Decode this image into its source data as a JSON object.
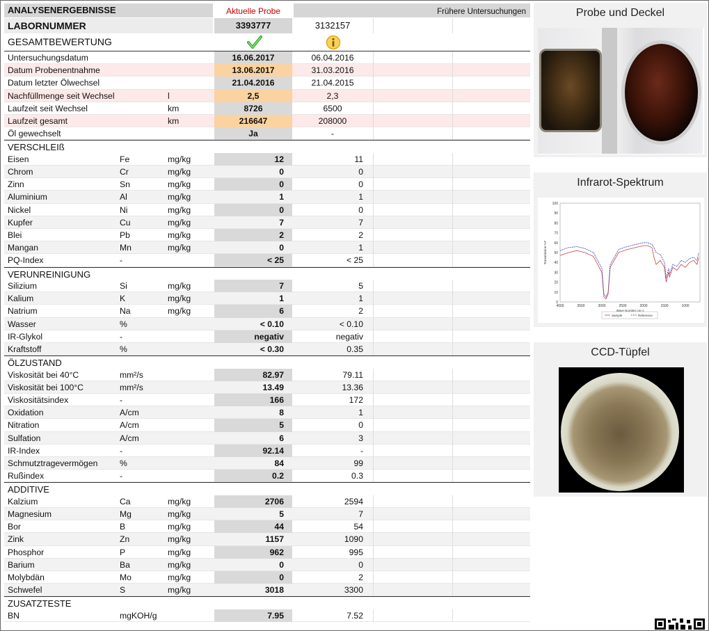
{
  "header": {
    "title": "ANALYSENERGEBNISSE",
    "current_label": "Aktuelle Probe",
    "previous_label": "Frühere Untersuchungen",
    "labnr_label": "LABORNUMMER",
    "labnr_current": "3393777",
    "labnr_previous": "3132157",
    "overall_label": "GESAMTBEWERTUNG",
    "overall_current_icon": "check-icon",
    "overall_previous_icon": "info-icon"
  },
  "colors": {
    "highlight_orange": "#fbd3a0",
    "value_gray": "#d9d9d9",
    "pink_row": "#fde9e9",
    "aktuelle_red": "#c00000"
  },
  "general": [
    {
      "name": "Untersuchungsdatum",
      "sym": "",
      "unit": "",
      "cur": "16.06.2017",
      "prev": "06.04.2016"
    },
    {
      "name": "Datum Probenentnahme",
      "sym": "",
      "unit": "",
      "cur": "13.06.2017",
      "prev": "31.03.2016"
    },
    {
      "name": "Datum letzter Ölwechsel",
      "sym": "",
      "unit": "",
      "cur": "21.04.2016",
      "prev": "21.04.2015"
    },
    {
      "name": "Nachfüllmenge seit Wechsel",
      "sym": "l",
      "unit": "",
      "cur": "2,5",
      "prev": "2,3"
    },
    {
      "name": "Laufzeit seit Wechsel",
      "sym": "km",
      "unit": "",
      "cur": "8726",
      "prev": "6500"
    },
    {
      "name": "Laufzeit gesamt",
      "sym": "km",
      "unit": "",
      "cur": "216647",
      "prev": "208000"
    },
    {
      "name": "Öl gewechselt",
      "sym": "",
      "unit": "",
      "cur": "Ja",
      "prev": "-"
    }
  ],
  "sections": {
    "verschleiss": "VERSCHLEIß",
    "verunreinigung": "VERUNREINIGUNG",
    "oelzustand": "ÖLZUSTAND",
    "additive": "ADDITIVE",
    "zusatztests": "ZUSATZTESTE"
  },
  "verschleiss": [
    {
      "name": "Eisen",
      "sym": "Fe",
      "unit": "mg/kg",
      "cur": "12",
      "prev": "11"
    },
    {
      "name": "Chrom",
      "sym": "Cr",
      "unit": "mg/kg",
      "cur": "0",
      "prev": "0"
    },
    {
      "name": "Zinn",
      "sym": "Sn",
      "unit": "mg/kg",
      "cur": "0",
      "prev": "0"
    },
    {
      "name": "Aluminium",
      "sym": "Al",
      "unit": "mg/kg",
      "cur": "1",
      "prev": "1"
    },
    {
      "name": "Nickel",
      "sym": "Ni",
      "unit": "mg/kg",
      "cur": "0",
      "prev": "0"
    },
    {
      "name": "Kupfer",
      "sym": "Cu",
      "unit": "mg/kg",
      "cur": "7",
      "prev": "7"
    },
    {
      "name": "Blei",
      "sym": "Pb",
      "unit": "mg/kg",
      "cur": "2",
      "prev": "2"
    },
    {
      "name": "Mangan",
      "sym": "Mn",
      "unit": "mg/kg",
      "cur": "0",
      "prev": "1"
    },
    {
      "name": "PQ-Index",
      "sym": "-",
      "unit": "",
      "cur": "< 25",
      "prev": "< 25"
    }
  ],
  "verunreinigung": [
    {
      "name": "Silizium",
      "sym": "Si",
      "unit": "mg/kg",
      "cur": "7",
      "prev": "5"
    },
    {
      "name": "Kalium",
      "sym": "K",
      "unit": "mg/kg",
      "cur": "1",
      "prev": "1"
    },
    {
      "name": "Natrium",
      "sym": "Na",
      "unit": "mg/kg",
      "cur": "6",
      "prev": "2"
    },
    {
      "name": "Wasser",
      "sym": "%",
      "unit": "",
      "cur": "< 0.10",
      "prev": "< 0.10"
    },
    {
      "name": "IR-Glykol",
      "sym": "-",
      "unit": "",
      "cur": "negativ",
      "prev": "negativ"
    },
    {
      "name": "Kraftstoff",
      "sym": "%",
      "unit": "",
      "cur": "< 0.30",
      "prev": "0.35"
    }
  ],
  "oelzustand": [
    {
      "name": "Viskosität bei 40°C",
      "sym": "mm²/s",
      "unit": "",
      "cur": "82.97",
      "prev": "79.11"
    },
    {
      "name": "Viskosität bei 100°C",
      "sym": "mm²/s",
      "unit": "",
      "cur": "13.49",
      "prev": "13.36"
    },
    {
      "name": "Viskositätsindex",
      "sym": "-",
      "unit": "",
      "cur": "166",
      "prev": "172"
    },
    {
      "name": "Oxidation",
      "sym": "A/cm",
      "unit": "",
      "cur": "8",
      "prev": "1"
    },
    {
      "name": "Nitration",
      "sym": "A/cm",
      "unit": "",
      "cur": "5",
      "prev": "0"
    },
    {
      "name": "Sulfation",
      "sym": "A/cm",
      "unit": "",
      "cur": "6",
      "prev": "3"
    },
    {
      "name": "IR-Index",
      "sym": "-",
      "unit": "",
      "cur": "92.14",
      "prev": "-"
    },
    {
      "name": "Schmutztragevermögen",
      "sym": "%",
      "unit": "",
      "cur": "84",
      "prev": "99"
    },
    {
      "name": "Rußindex",
      "sym": "-",
      "unit": "",
      "cur": "0.2",
      "prev": "0.3"
    }
  ],
  "additive": [
    {
      "name": "Kalzium",
      "sym": "Ca",
      "unit": "mg/kg",
      "cur": "2706",
      "prev": "2594"
    },
    {
      "name": "Magnesium",
      "sym": "Mg",
      "unit": "mg/kg",
      "cur": "5",
      "prev": "7"
    },
    {
      "name": "Bor",
      "sym": "B",
      "unit": "mg/kg",
      "cur": "44",
      "prev": "54"
    },
    {
      "name": "Zink",
      "sym": "Zn",
      "unit": "mg/kg",
      "cur": "1157",
      "prev": "1090"
    },
    {
      "name": "Phosphor",
      "sym": "P",
      "unit": "mg/kg",
      "cur": "962",
      "prev": "995"
    },
    {
      "name": "Barium",
      "sym": "Ba",
      "unit": "mg/kg",
      "cur": "0",
      "prev": "0"
    },
    {
      "name": "Molybdän",
      "sym": "Mo",
      "unit": "mg/kg",
      "cur": "0",
      "prev": "2"
    },
    {
      "name": "Schwefel",
      "sym": "S",
      "unit": "mg/kg",
      "cur": "3018",
      "prev": "3300"
    }
  ],
  "zusatztests": [
    {
      "name": "BN",
      "sym": "mgKOH/g",
      "unit": "",
      "cur": "7.95",
      "prev": "7.52"
    }
  ],
  "panels": {
    "probe_title": "Probe und Deckel",
    "ir_title": "Infrarot-Spektrum",
    "ccd_title": "CCD-Tüpfel"
  },
  "chart_data": {
    "type": "line",
    "title": "",
    "xlabel": "Wave Number cm-1",
    "ylabel": "Transmission %T",
    "xlim": [
      4000,
      650
    ],
    "ylim": [
      0,
      100
    ],
    "xticks": [
      "4000",
      "3500",
      "3000",
      "2500",
      "2000",
      "1500",
      "1000"
    ],
    "yticks": [
      "0",
      "10",
      "20",
      "30",
      "40",
      "50",
      "60",
      "70",
      "80",
      "90",
      "100"
    ],
    "series": [
      {
        "name": "Sample",
        "color": "#d04040",
        "x": [
          4000,
          3800,
          3600,
          3400,
          3200,
          3000,
          2950,
          2900,
          2850,
          2800,
          2600,
          2400,
          2200,
          2000,
          1900,
          1800,
          1750,
          1700,
          1600,
          1500,
          1460,
          1400,
          1380,
          1300,
          1200,
          1100,
          1000,
          900,
          800,
          720,
          680
        ],
        "y": [
          47,
          50,
          52,
          50,
          46,
          30,
          5,
          3,
          8,
          35,
          50,
          53,
          55,
          57,
          57,
          55,
          45,
          38,
          42,
          35,
          20,
          30,
          25,
          35,
          32,
          38,
          35,
          40,
          42,
          38,
          45
        ]
      },
      {
        "name": "Reference",
        "color": "#3040b0",
        "x": [
          4000,
          3800,
          3600,
          3400,
          3200,
          3000,
          2950,
          2900,
          2850,
          2800,
          2600,
          2400,
          2200,
          2000,
          1900,
          1800,
          1750,
          1700,
          1600,
          1500,
          1460,
          1400,
          1380,
          1300,
          1200,
          1100,
          1000,
          900,
          800,
          720,
          680
        ],
        "y": [
          52,
          55,
          56,
          54,
          50,
          34,
          8,
          5,
          10,
          38,
          53,
          56,
          58,
          60,
          60,
          58,
          55,
          50,
          48,
          40,
          24,
          34,
          28,
          38,
          36,
          42,
          40,
          44,
          45,
          42,
          50
        ]
      }
    ]
  }
}
